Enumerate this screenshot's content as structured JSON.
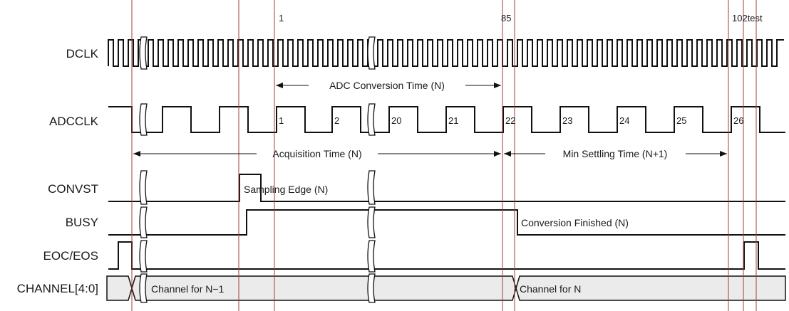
{
  "signals": [
    {
      "id": "dclk",
      "label": "DCLK"
    },
    {
      "id": "adcclk",
      "label": "ADCCLK"
    },
    {
      "id": "convst",
      "label": "CONVST"
    },
    {
      "id": "busy",
      "label": "BUSY"
    },
    {
      "id": "eoc",
      "label": "EOC/EOS"
    },
    {
      "id": "channel",
      "label": "CHANNEL[4:0]"
    }
  ],
  "cycle_markers": {
    "dclk_1": "1",
    "dclk_85": "85",
    "dclk_102": "102test"
  },
  "adcclk_numbers": [
    "1",
    "2",
    "20",
    "21",
    "22",
    "23",
    "24",
    "25",
    "26"
  ],
  "annotations": {
    "adc_conversion_time": "ADC Conversion Time (N)",
    "acquisition_time": "Acquisition Time (N)",
    "min_settling_time": "Min Settling Time (N+1)",
    "sampling_edge": "Sampling Edge (N)",
    "conversion_finished": "Conversion Finished (N)",
    "channel_prev": "Channel for N−1",
    "channel_next": "Channel for N"
  },
  "colors": {
    "marker": "#a03c3c",
    "bus_fill": "#ebebeb",
    "wave": "#111111"
  }
}
